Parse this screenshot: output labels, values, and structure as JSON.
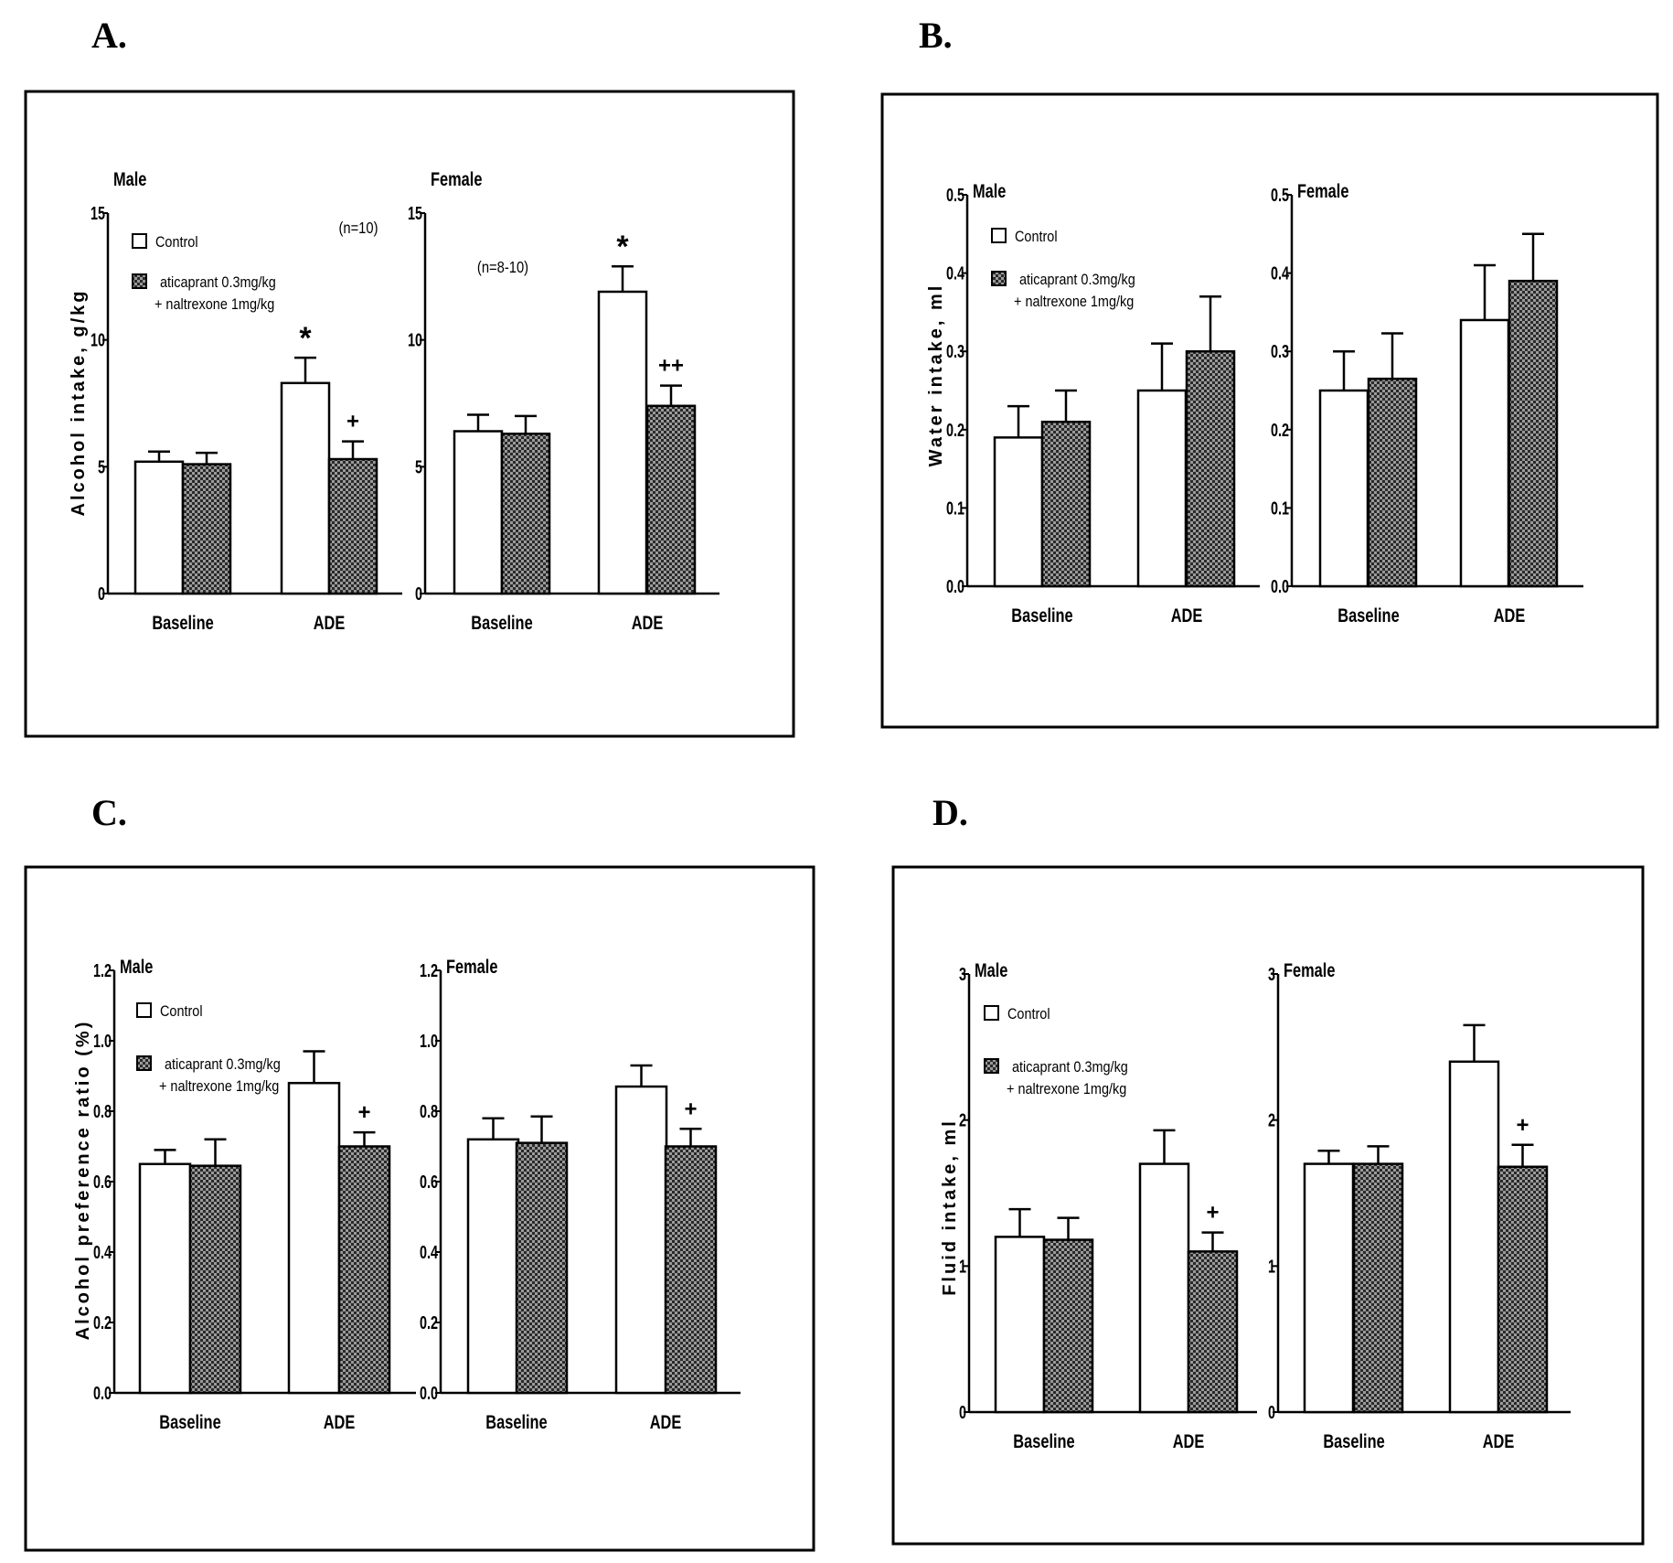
{
  "legend": {
    "control": "Control",
    "treatment_line1": "aticaprant 0.3mg/kg",
    "treatment_line2": "+ naltrexone 1mg/kg"
  },
  "colors": {
    "axis": "#000000",
    "control_fill": "#ffffff",
    "treatment_fill": "#2a2a2a",
    "treatment_pattern": "#9a9a9a"
  },
  "chart_data": [
    {
      "id": "A",
      "letter": "A.",
      "type": "bar",
      "ylabel": "Alcohol intake, g/kg",
      "ylim": [
        0,
        15
      ],
      "yticks": [
        "0",
        "5",
        "10",
        "15"
      ],
      "categories": [
        "Baseline",
        "ADE"
      ],
      "subplots": [
        {
          "title": "Male",
          "n_label": "(n=10)",
          "series": [
            {
              "name": "Control",
              "values": [
                5.2,
                8.3
              ],
              "errors": [
                0.4,
                1.0
              ]
            },
            {
              "name": "aticaprant 0.3mg/kg + naltrexone 1mg/kg",
              "values": [
                5.1,
                5.3
              ],
              "errors": [
                0.45,
                0.7
              ]
            }
          ],
          "annotations": [
            {
              "series": 0,
              "category": 1,
              "text": "*"
            },
            {
              "series": 1,
              "category": 1,
              "text": "+"
            }
          ]
        },
        {
          "title": "Female",
          "n_label": "(n=8-10)",
          "series": [
            {
              "name": "Control",
              "values": [
                6.4,
                11.9
              ],
              "errors": [
                0.65,
                1.0
              ]
            },
            {
              "name": "aticaprant 0.3mg/kg + naltrexone 1mg/kg",
              "values": [
                6.3,
                7.4
              ],
              "errors": [
                0.7,
                0.8
              ]
            }
          ],
          "annotations": [
            {
              "series": 0,
              "category": 1,
              "text": "*"
            },
            {
              "series": 1,
              "category": 1,
              "text": "++"
            }
          ]
        }
      ]
    },
    {
      "id": "B",
      "letter": "B.",
      "type": "bar",
      "ylabel": "Water intake, ml",
      "ylim": [
        0,
        0.5
      ],
      "yticks": [
        "0.0",
        "0.1",
        "0.2",
        "0.3",
        "0.4",
        "0.5"
      ],
      "categories": [
        "Baseline",
        "ADE"
      ],
      "subplots": [
        {
          "title": "Male",
          "series": [
            {
              "name": "Control",
              "values": [
                0.19,
                0.25
              ],
              "errors": [
                0.04,
                0.06
              ]
            },
            {
              "name": "aticaprant 0.3mg/kg + naltrexone 1mg/kg",
              "values": [
                0.21,
                0.3
              ],
              "errors": [
                0.04,
                0.07
              ]
            }
          ],
          "annotations": []
        },
        {
          "title": "Female",
          "series": [
            {
              "name": "Control",
              "values": [
                0.25,
                0.34
              ],
              "errors": [
                0.05,
                0.07
              ]
            },
            {
              "name": "aticaprant 0.3mg/kg + naltrexone 1mg/kg",
              "values": [
                0.265,
                0.39
              ],
              "errors": [
                0.058,
                0.06
              ]
            }
          ],
          "annotations": []
        }
      ]
    },
    {
      "id": "C",
      "letter": "C.",
      "type": "bar",
      "ylabel": "Alcohol preference ratio (%)",
      "ylim": [
        0,
        1.2
      ],
      "yticks": [
        "0.0",
        "0.2",
        "0.4",
        "0.6",
        "0.8",
        "1.0",
        "1.2"
      ],
      "categories": [
        "Baseline",
        "ADE"
      ],
      "subplots": [
        {
          "title": "Male",
          "series": [
            {
              "name": "Control",
              "values": [
                0.65,
                0.88
              ],
              "errors": [
                0.04,
                0.09
              ]
            },
            {
              "name": "aticaprant 0.3mg/kg + naltrexone 1mg/kg",
              "values": [
                0.645,
                0.7
              ],
              "errors": [
                0.075,
                0.04
              ]
            }
          ],
          "annotations": [
            {
              "series": 1,
              "category": 1,
              "text": "+"
            }
          ]
        },
        {
          "title": "Female",
          "series": [
            {
              "name": "Control",
              "values": [
                0.72,
                0.87
              ],
              "errors": [
                0.06,
                0.06
              ]
            },
            {
              "name": "aticaprant 0.3mg/kg + naltrexone 1mg/kg",
              "values": [
                0.71,
                0.7
              ],
              "errors": [
                0.075,
                0.05
              ]
            }
          ],
          "annotations": [
            {
              "series": 1,
              "category": 1,
              "text": "+"
            }
          ]
        }
      ]
    },
    {
      "id": "D",
      "letter": "D.",
      "type": "bar",
      "ylabel": "Fluid intake, ml",
      "ylim": [
        0,
        3
      ],
      "yticks": [
        "0",
        "1",
        "2",
        "3"
      ],
      "categories": [
        "Baseline",
        "ADE"
      ],
      "subplots": [
        {
          "title": "Male",
          "series": [
            {
              "name": "Control",
              "values": [
                1.2,
                1.7
              ],
              "errors": [
                0.19,
                0.23
              ]
            },
            {
              "name": "aticaprant 0.3mg/kg + naltrexone 1mg/kg",
              "values": [
                1.18,
                1.1
              ],
              "errors": [
                0.15,
                0.13
              ]
            }
          ],
          "annotations": [
            {
              "series": 1,
              "category": 1,
              "text": "+"
            }
          ]
        },
        {
          "title": "Female",
          "series": [
            {
              "name": "Control",
              "values": [
                1.7,
                2.4
              ],
              "errors": [
                0.09,
                0.25
              ]
            },
            {
              "name": "aticaprant 0.3mg/kg + naltrexone 1mg/kg",
              "values": [
                1.7,
                1.68
              ],
              "errors": [
                0.12,
                0.15
              ]
            }
          ],
          "annotations": [
            {
              "series": 1,
              "category": 1,
              "text": "+"
            }
          ]
        }
      ]
    }
  ]
}
